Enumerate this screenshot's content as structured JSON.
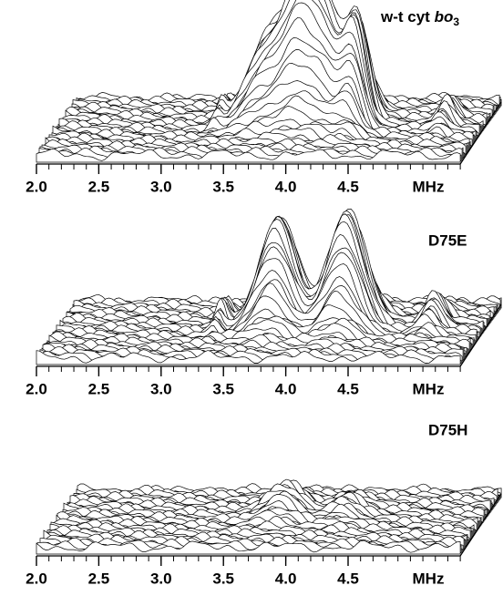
{
  "chart_data": [
    {
      "type": "surface",
      "title": [
        "w-t cyt ",
        "bo",
        "3"
      ],
      "x_label": "MHz",
      "xlim": [
        2.0,
        5.4
      ],
      "xticks": [
        {
          "value": 2.0,
          "label": "2.0"
        },
        {
          "value": 2.5,
          "label": "2.5"
        },
        {
          "value": 3.0,
          "label": "3.0"
        },
        {
          "value": 3.5,
          "label": "3.5"
        },
        {
          "value": 4.0,
          "label": "4.0"
        },
        {
          "value": 4.5,
          "label": "4.5"
        }
      ],
      "peaks": [
        [
          3.7,
          0.8,
          0.25
        ],
        [
          3.95,
          0.95,
          0.15
        ],
        [
          4.15,
          0.9,
          0.15
        ],
        [
          4.38,
          0.9,
          0.12
        ],
        [
          3.3,
          0.15,
          0.05
        ],
        [
          5.1,
          0.2,
          0.08
        ]
      ]
    },
    {
      "type": "surface",
      "title": "D75E",
      "x_label": "MHz",
      "xlim": [
        2.0,
        5.4
      ],
      "xticks": [
        {
          "value": 2.0,
          "label": "2.0"
        },
        {
          "value": 2.5,
          "label": "2.5"
        },
        {
          "value": 3.0,
          "label": "3.0"
        },
        {
          "value": 3.5,
          "label": "3.5"
        },
        {
          "value": 4.0,
          "label": "4.0"
        },
        {
          "value": 4.5,
          "label": "4.5"
        }
      ],
      "peaks": [
        [
          3.75,
          0.95,
          0.2
        ],
        [
          4.3,
          1.0,
          0.2
        ],
        [
          3.3,
          0.2,
          0.05
        ],
        [
          5.0,
          0.25,
          0.1
        ]
      ]
    },
    {
      "type": "surface",
      "title": "D75H",
      "x_label": "MHz",
      "xlim": [
        2.0,
        5.4
      ],
      "xticks": [
        {
          "value": 2.0,
          "label": "2.0"
        },
        {
          "value": 2.5,
          "label": "2.5"
        },
        {
          "value": 3.0,
          "label": "3.0"
        },
        {
          "value": 3.5,
          "label": "3.5"
        },
        {
          "value": 4.0,
          "label": "4.0"
        },
        {
          "value": 4.5,
          "label": "4.5"
        }
      ],
      "peaks": [
        [
          3.8,
          0.25,
          0.2
        ],
        [
          4.3,
          0.15,
          0.15
        ]
      ]
    }
  ]
}
